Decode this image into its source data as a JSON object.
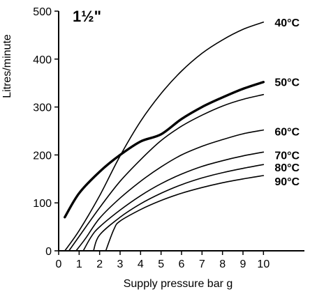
{
  "chart_data": {
    "type": "line",
    "title": "1½\"",
    "xlabel": "Supply pressure bar g",
    "ylabel": "Litres/minute",
    "xlim": [
      0,
      12
    ],
    "ylim": [
      0,
      500
    ],
    "x_ticks": [
      0,
      1,
      2,
      3,
      4,
      5,
      6,
      7,
      8,
      9,
      10
    ],
    "y_ticks": [
      0,
      100,
      200,
      300,
      400,
      500
    ],
    "grid": false,
    "series": [
      {
        "name": "40°C",
        "emphasis": false,
        "points": [
          [
            0.3,
            0
          ],
          [
            1,
            42
          ],
          [
            2,
            115
          ],
          [
            3,
            198
          ],
          [
            4,
            270
          ],
          [
            5,
            328
          ],
          [
            6,
            375
          ],
          [
            7,
            412
          ],
          [
            8,
            440
          ],
          [
            9,
            462
          ],
          [
            10,
            477
          ]
        ]
      },
      {
        "name": "50°C",
        "emphasis": false,
        "points": [
          [
            0.5,
            0
          ],
          [
            1,
            30
          ],
          [
            2,
            90
          ],
          [
            3,
            145
          ],
          [
            4,
            190
          ],
          [
            5,
            230
          ],
          [
            6,
            260
          ],
          [
            7,
            283
          ],
          [
            8,
            302
          ],
          [
            9,
            316
          ],
          [
            10,
            326
          ]
        ]
      },
      {
        "name": "60°C",
        "emphasis": false,
        "points": [
          [
            0.85,
            0
          ],
          [
            1.3,
            25
          ],
          [
            2,
            68
          ],
          [
            3,
            110
          ],
          [
            4,
            145
          ],
          [
            5,
            175
          ],
          [
            6,
            200
          ],
          [
            7,
            218
          ],
          [
            8,
            232
          ],
          [
            9,
            244
          ],
          [
            10,
            252
          ]
        ]
      },
      {
        "name": "70°C",
        "emphasis": false,
        "points": [
          [
            1.2,
            0
          ],
          [
            1.6,
            30
          ],
          [
            2,
            50
          ],
          [
            3,
            85
          ],
          [
            4,
            115
          ],
          [
            5,
            140
          ],
          [
            6,
            160
          ],
          [
            7,
            176
          ],
          [
            8,
            188
          ],
          [
            9,
            198
          ],
          [
            10,
            206
          ]
        ]
      },
      {
        "name": "80°C",
        "emphasis": false,
        "points": [
          [
            1.7,
            0
          ],
          [
            2,
            33
          ],
          [
            3,
            70
          ],
          [
            4,
            98
          ],
          [
            5,
            120
          ],
          [
            6,
            138
          ],
          [
            7,
            152
          ],
          [
            8,
            163
          ],
          [
            9,
            172
          ],
          [
            10,
            180
          ]
        ]
      },
      {
        "name": "90°C",
        "emphasis": false,
        "points": [
          [
            2.3,
            0
          ],
          [
            2.7,
            45
          ],
          [
            3,
            62
          ],
          [
            4,
            86
          ],
          [
            5,
            105
          ],
          [
            6,
            120
          ],
          [
            7,
            132
          ],
          [
            8,
            142
          ],
          [
            9,
            150
          ],
          [
            10,
            157
          ]
        ]
      },
      {
        "name": "",
        "emphasis": true,
        "points": [
          [
            0.3,
            70
          ],
          [
            1,
            120
          ],
          [
            2,
            165
          ],
          [
            3,
            200
          ],
          [
            4,
            228
          ],
          [
            5,
            243
          ],
          [
            6,
            275
          ],
          [
            7,
            300
          ],
          [
            8,
            320
          ],
          [
            9,
            338
          ],
          [
            10,
            352
          ]
        ]
      }
    ]
  }
}
